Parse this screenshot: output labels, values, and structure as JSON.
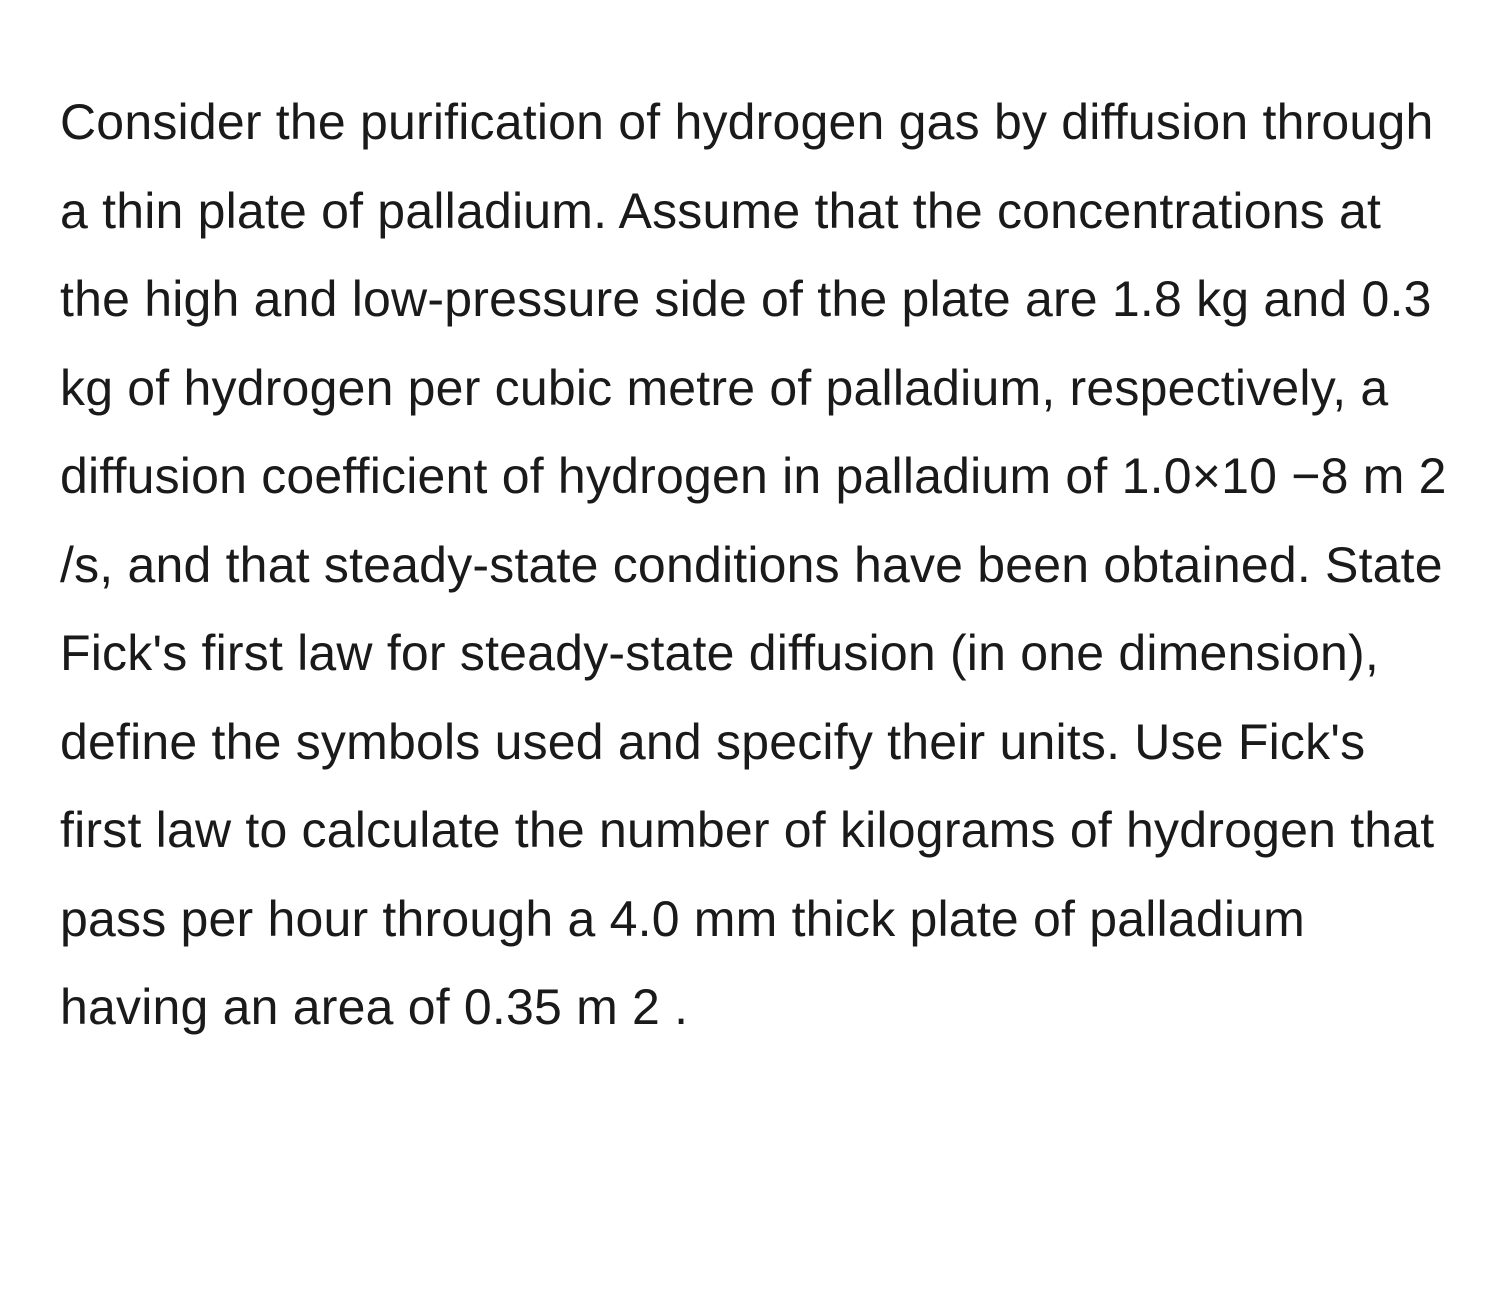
{
  "document": {
    "text": "Consider the purification of hydrogen gas by diffusion through a thin plate of palladium. Assume that the concentrations at the high and low-pressure side of the plate are 1.8 kg and 0.3 kg of hydrogen per cubic metre of palladium, respectively, a diffusion coefficient of hydrogen in palladium of 1.0×10 −8 m 2 /s, and that steady-state conditions have been obtained. State Fick's first law for steady-state diffusion (in one dimension), define the symbols used and specify their units. Use Fick's first law to calculate the number of kilograms of hydrogen that pass per hour through a 4.0 mm thick plate of palladium having an area of 0.35 m 2 .",
    "text_color": "#1a1a1a",
    "background_color": "#ffffff",
    "font_size": 50,
    "line_height": 1.77
  }
}
